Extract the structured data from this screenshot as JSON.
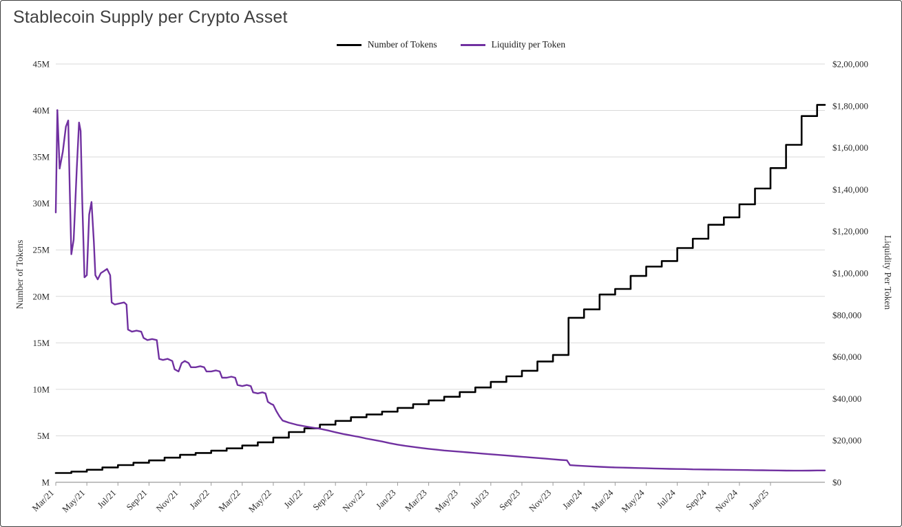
{
  "title": "Stablecoin Supply per Crypto Asset",
  "legend": [
    {
      "label": "Number of Tokens",
      "color": "#000000"
    },
    {
      "label": "Liquidity per Token",
      "color": "#7030A0"
    }
  ],
  "colors": {
    "gridline": "#d9d9d9",
    "axis": "#9a9a9a",
    "title_text": "#3f3f3f"
  },
  "chart_data": {
    "type": "line",
    "title": "Stablecoin Supply per Crypto Asset",
    "grid": "horizontal",
    "legend_position": "top",
    "x_axis": {
      "unit": "month",
      "min": 0,
      "max": 49.5,
      "tick_positions": [
        0,
        2,
        4,
        6,
        8,
        10,
        12,
        14,
        16,
        18,
        20,
        22,
        24,
        26,
        28,
        30,
        32,
        34,
        36,
        38,
        40,
        42,
        44,
        46
      ],
      "tick_labels": [
        "Mar/21",
        "May/21",
        "Jul/21",
        "Sep/21",
        "Nov/21",
        "Jan/22",
        "Mar/22",
        "May/22",
        "Jul/22",
        "Sep/22",
        "Nov/22",
        "Jan/23",
        "Mar/23",
        "May/23",
        "Jul/23",
        "Sep/23",
        "Nov/23",
        "Jan/24",
        "Mar/24",
        "May/24",
        "Jul/24",
        "Sep/24",
        "Nov/24",
        "Jan/25"
      ]
    },
    "left_axis": {
      "label": "Number of Tokens",
      "unit": "millions of tokens",
      "min": 0,
      "max": 45,
      "tick_values": [
        0,
        5,
        10,
        15,
        20,
        25,
        30,
        35,
        40,
        45
      ],
      "tick_labels": [
        "M",
        "5M",
        "10M",
        "15M",
        "20M",
        "25M",
        "30M",
        "35M",
        "40M",
        "45M"
      ]
    },
    "right_axis": {
      "label": "Liquidity Per Token",
      "unit": "USD",
      "min": 0,
      "max": 200000,
      "tick_values": [
        0,
        20000,
        40000,
        60000,
        80000,
        100000,
        120000,
        140000,
        160000,
        180000,
        200000
      ],
      "tick_labels": [
        "$0",
        "$20,000",
        "$40,000",
        "$60,000",
        "$80,000",
        "$1,00,000",
        "$1,20,000",
        "$1,40,000",
        "$1,60,000",
        "$1,80,000",
        "$2,00,000"
      ]
    },
    "series": [
      {
        "name": "Number of Tokens",
        "axis": "left",
        "color": "#000000",
        "width": 2.6,
        "style": "step",
        "points": [
          [
            0,
            1.0
          ],
          [
            1,
            1.15
          ],
          [
            2,
            1.35
          ],
          [
            3,
            1.6
          ],
          [
            4,
            1.85
          ],
          [
            5,
            2.1
          ],
          [
            6,
            2.35
          ],
          [
            7,
            2.65
          ],
          [
            8,
            2.95
          ],
          [
            9,
            3.15
          ],
          [
            10,
            3.4
          ],
          [
            11,
            3.65
          ],
          [
            12,
            3.95
          ],
          [
            13,
            4.3
          ],
          [
            14,
            4.8
          ],
          [
            15,
            5.4
          ],
          [
            16,
            5.8
          ],
          [
            17,
            6.2
          ],
          [
            18,
            6.6
          ],
          [
            19,
            7.0
          ],
          [
            20,
            7.3
          ],
          [
            21,
            7.6
          ],
          [
            22,
            8.0
          ],
          [
            23,
            8.4
          ],
          [
            24,
            8.8
          ],
          [
            25,
            9.2
          ],
          [
            26,
            9.7
          ],
          [
            27,
            10.2
          ],
          [
            28,
            10.8
          ],
          [
            29,
            11.4
          ],
          [
            30,
            12.0
          ],
          [
            31,
            13.0
          ],
          [
            32,
            13.7
          ],
          [
            33,
            17.7
          ],
          [
            34,
            18.6
          ],
          [
            35,
            20.2
          ],
          [
            36,
            20.8
          ],
          [
            37,
            22.2
          ],
          [
            38,
            23.2
          ],
          [
            39,
            23.8
          ],
          [
            40,
            25.2
          ],
          [
            41,
            26.2
          ],
          [
            42,
            27.7
          ],
          [
            43,
            28.5
          ],
          [
            44,
            29.9
          ],
          [
            45,
            31.6
          ],
          [
            46,
            33.8
          ],
          [
            47,
            36.3
          ],
          [
            48,
            39.4
          ],
          [
            49,
            40.6
          ]
        ]
      },
      {
        "name": "Liquidity per Token",
        "axis": "right",
        "color": "#7030A0",
        "width": 2.4,
        "style": "line",
        "points": [
          [
            0,
            129000
          ],
          [
            0.1,
            178000
          ],
          [
            0.25,
            150000
          ],
          [
            0.45,
            158000
          ],
          [
            0.65,
            170000
          ],
          [
            0.8,
            173000
          ],
          [
            0.9,
            140000
          ],
          [
            1.0,
            109000
          ],
          [
            1.15,
            116000
          ],
          [
            1.35,
            150000
          ],
          [
            1.5,
            172000
          ],
          [
            1.6,
            168000
          ],
          [
            1.7,
            135000
          ],
          [
            1.85,
            98000
          ],
          [
            2.0,
            99000
          ],
          [
            2.15,
            128000
          ],
          [
            2.3,
            134000
          ],
          [
            2.45,
            115000
          ],
          [
            2.55,
            99000
          ],
          [
            2.7,
            97000
          ],
          [
            2.9,
            100000
          ],
          [
            3.1,
            101000
          ],
          [
            3.3,
            102000
          ],
          [
            3.5,
            99000
          ],
          [
            3.6,
            86000
          ],
          [
            3.8,
            85000
          ],
          [
            4.1,
            85500
          ],
          [
            4.4,
            86000
          ],
          [
            4.55,
            85000
          ],
          [
            4.65,
            73000
          ],
          [
            4.9,
            72000
          ],
          [
            5.2,
            72500
          ],
          [
            5.5,
            72000
          ],
          [
            5.65,
            69000
          ],
          [
            5.9,
            68000
          ],
          [
            6.2,
            68500
          ],
          [
            6.5,
            68000
          ],
          [
            6.65,
            59000
          ],
          [
            6.9,
            58500
          ],
          [
            7.2,
            59000
          ],
          [
            7.5,
            58000
          ],
          [
            7.65,
            54000
          ],
          [
            7.9,
            53000
          ],
          [
            8.1,
            57000
          ],
          [
            8.3,
            58000
          ],
          [
            8.55,
            57000
          ],
          [
            8.7,
            55000
          ],
          [
            9.0,
            55000
          ],
          [
            9.3,
            55500
          ],
          [
            9.55,
            55000
          ],
          [
            9.7,
            53000
          ],
          [
            10.0,
            53000
          ],
          [
            10.3,
            53500
          ],
          [
            10.55,
            53000
          ],
          [
            10.7,
            50000
          ],
          [
            11.0,
            50000
          ],
          [
            11.3,
            50500
          ],
          [
            11.55,
            50000
          ],
          [
            11.7,
            46500
          ],
          [
            12.0,
            46000
          ],
          [
            12.3,
            46500
          ],
          [
            12.55,
            46000
          ],
          [
            12.7,
            43000
          ],
          [
            13.0,
            42500
          ],
          [
            13.3,
            43000
          ],
          [
            13.5,
            42500
          ],
          [
            13.65,
            38500
          ],
          [
            13.85,
            37500
          ],
          [
            14.0,
            37000
          ],
          [
            14.2,
            34000
          ],
          [
            14.4,
            31500
          ],
          [
            14.6,
            29500
          ],
          [
            14.8,
            29000
          ],
          [
            15.0,
            28500
          ],
          [
            15.5,
            27500
          ],
          [
            16.0,
            26800
          ],
          [
            16.5,
            26200
          ],
          [
            17.0,
            25600
          ],
          [
            17.5,
            24800
          ],
          [
            18.0,
            23900
          ],
          [
            18.5,
            23100
          ],
          [
            19.0,
            22400
          ],
          [
            19.5,
            21700
          ],
          [
            20.0,
            20900
          ],
          [
            20.5,
            20200
          ],
          [
            21.0,
            19500
          ],
          [
            21.5,
            18700
          ],
          [
            22.0,
            18000
          ],
          [
            22.5,
            17400
          ],
          [
            23.0,
            16900
          ],
          [
            23.5,
            16400
          ],
          [
            24.0,
            16000
          ],
          [
            24.5,
            15600
          ],
          [
            25.0,
            15200
          ],
          [
            25.5,
            14900
          ],
          [
            26.0,
            14600
          ],
          [
            26.5,
            14300
          ],
          [
            27.0,
            14000
          ],
          [
            27.5,
            13700
          ],
          [
            28.0,
            13400
          ],
          [
            28.5,
            13100
          ],
          [
            29.0,
            12800
          ],
          [
            29.5,
            12500
          ],
          [
            30.0,
            12200
          ],
          [
            30.5,
            11900
          ],
          [
            31.0,
            11600
          ],
          [
            31.5,
            11300
          ],
          [
            32.0,
            11000
          ],
          [
            32.5,
            10700
          ],
          [
            32.9,
            10500
          ],
          [
            33.1,
            8200
          ],
          [
            33.5,
            8000
          ],
          [
            34.0,
            7800
          ],
          [
            34.5,
            7600
          ],
          [
            35.0,
            7400
          ],
          [
            35.5,
            7250
          ],
          [
            36.0,
            7100
          ],
          [
            36.5,
            7000
          ],
          [
            37.0,
            6900
          ],
          [
            37.5,
            6800
          ],
          [
            38.0,
            6700
          ],
          [
            38.5,
            6600
          ],
          [
            39.0,
            6500
          ],
          [
            39.5,
            6400
          ],
          [
            40.0,
            6350
          ],
          [
            40.5,
            6300
          ],
          [
            41.0,
            6200
          ],
          [
            41.5,
            6150
          ],
          [
            42.0,
            6100
          ],
          [
            42.5,
            6050
          ],
          [
            43.0,
            6000
          ],
          [
            43.5,
            5950
          ],
          [
            44.0,
            5900
          ],
          [
            44.5,
            5850
          ],
          [
            45.0,
            5800
          ],
          [
            45.5,
            5750
          ],
          [
            46.0,
            5700
          ],
          [
            46.5,
            5650
          ],
          [
            47.0,
            5600
          ],
          [
            47.5,
            5550
          ],
          [
            48.0,
            5550
          ],
          [
            48.5,
            5600
          ],
          [
            49.0,
            5650
          ],
          [
            49.5,
            5650
          ]
        ]
      }
    ]
  }
}
